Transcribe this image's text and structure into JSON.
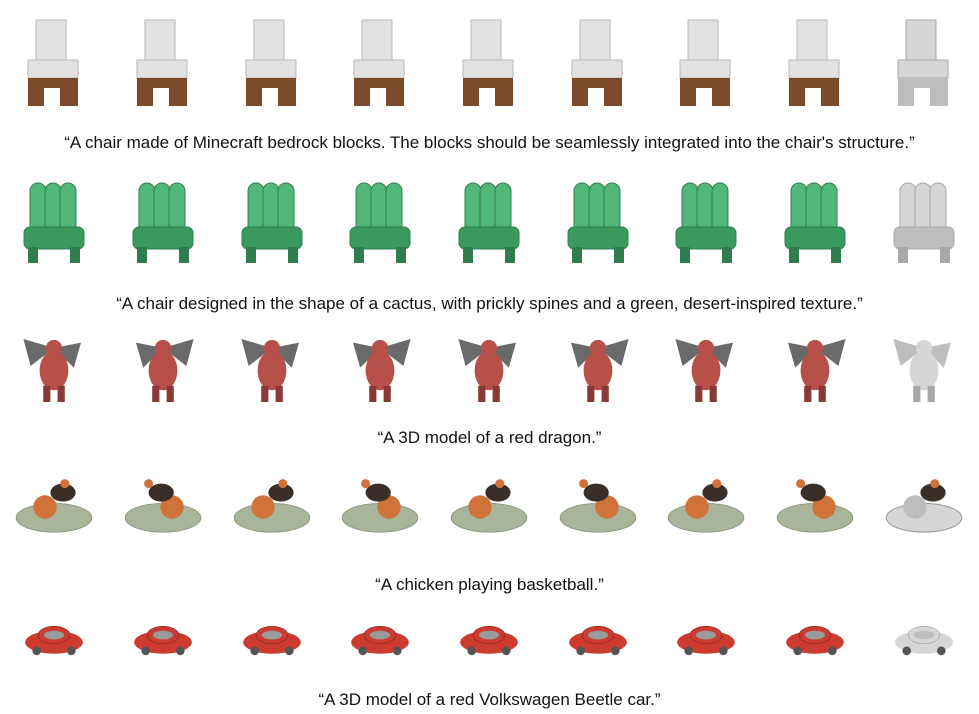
{
  "figure": {
    "rows": [
      {
        "caption": "“A chair made of Minecraft bedrock blocks. The blocks should be seamlessly integrated into the chair's structure.”",
        "object": "minecraft-chair",
        "views": 8,
        "has_geometry_view": true,
        "colors": {
          "primary": "#e2e2e2",
          "secondary": "#7a4a2a",
          "shadow": "#b8b8b8"
        }
      },
      {
        "caption": "“A chair designed in the shape of a cactus, with prickly spines and a green, desert-inspired texture.”",
        "object": "cactus-chair",
        "views": 8,
        "has_geometry_view": true,
        "colors": {
          "primary": "#52b879",
          "secondary": "#3a9a5e",
          "shadow": "#2f7d4c"
        }
      },
      {
        "caption": "“A 3D model of a red dragon.”",
        "object": "red-dragon",
        "views": 8,
        "has_geometry_view": true,
        "colors": {
          "primary": "#b8504a",
          "secondary": "#6a6a6a",
          "shadow": "#8a3a36"
        }
      },
      {
        "caption": "“A chicken playing basketball.”",
        "object": "chicken-basketball",
        "views": 8,
        "has_geometry_view": true,
        "colors": {
          "primary": "#a9b59a",
          "secondary": "#d0733a",
          "shadow": "#3a2f28"
        }
      },
      {
        "caption": "“A 3D model of a red Volkswagen Beetle car.”",
        "object": "red-beetle-car",
        "views": 8,
        "has_geometry_view": true,
        "colors": {
          "primary": "#cc3b30",
          "secondary": "#9a9a9a",
          "shadow": "#8e2820"
        }
      }
    ],
    "geometry_color": "#d6d6d6"
  }
}
